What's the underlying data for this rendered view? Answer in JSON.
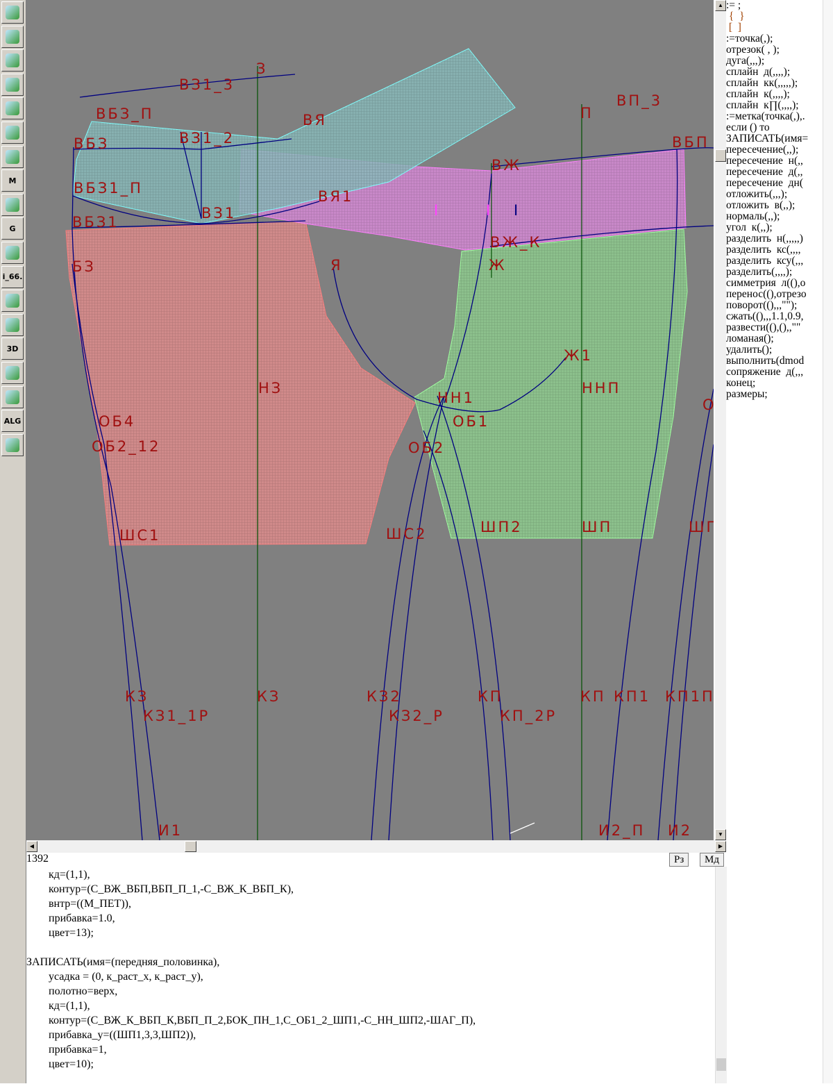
{
  "toolbar": {
    "items": [
      {
        "icon": "zoom-in-icon"
      },
      {
        "icon": "zoom-out-icon"
      },
      {
        "icon": "zoom-fit-icon"
      },
      {
        "icon": "grid-icon"
      },
      {
        "icon": "segment-icon"
      },
      {
        "icon": "map-icon"
      },
      {
        "icon": "pattern-piece-icon"
      },
      {
        "icon": "model-icon",
        "text": "M"
      },
      {
        "icon": "compass-icon"
      },
      {
        "icon": "grading-icon",
        "text": "G"
      },
      {
        "icon": "measurements-icon"
      },
      {
        "icon": "version-icon",
        "text": "i_66."
      },
      {
        "icon": "table-icon"
      },
      {
        "icon": "avatar-icon"
      },
      {
        "icon": "3d-icon",
        "text": "3D"
      },
      {
        "icon": "list-icon"
      },
      {
        "icon": "books-icon"
      },
      {
        "icon": "algorithm-icon",
        "text": "ALG"
      },
      {
        "icon": "exit-icon"
      }
    ]
  },
  "canvas": {
    "background": "#808080",
    "labels": [
      "ВЗ1_3",
      "З",
      "ВБЗ_П",
      "ВЯ",
      "ВБЗ",
      "ВЗ1_2",
      "ВБЗ1_П",
      "ВЯ1",
      "ВЗ1",
      "ВБЗ1",
      "БЗ",
      "Я",
      "П",
      "ВП_3",
      "ВБП",
      "ВЖ",
      "ВЖ_К",
      "Ж",
      "Ж1",
      "НН1",
      "НЗ",
      "ННП",
      "ОБ1",
      "ОБ2",
      "ОБ4",
      "ОБ2_12",
      "ШС1",
      "ШС2",
      "ШП2",
      "ШП",
      "ШП",
      "КЗ",
      "КЗ1_1Р",
      "КЗ",
      "КЗ2",
      "КЗ2_Р",
      "КП",
      "КП_2Р",
      "КП",
      "КП1",
      "КП1П",
      "И1",
      "И2_П",
      "И2",
      "О",
      "I",
      "I",
      "I"
    ],
    "colors": {
      "back_piece": "#e08080",
      "front_piece": "#90e090",
      "waistband_front": "#e080e0",
      "waistband_back": "#80e0e0",
      "lines": "#000080",
      "axis": "#006000",
      "labels": "#a01010"
    }
  },
  "palette": {
    "items": [
      ":= ;",
      " {  }",
      " [  ]",
      ":=точка(,);",
      "отрезок( , );",
      "дуга(,,,);",
      "сплайн  д(,,,,);",
      "сплайн  кк(,,,,,);",
      "сплайн  к(,,,,);",
      "сплайн  к∏(,,,,);",
      ":=метка(точка(,),.",
      "если () то",
      "ЗАПИСАТЬ(имя=",
      "пересечение(,,);",
      "пересечение  н(,,",
      "пересечение  д(,,",
      "пересечение  дн(",
      "отложить(,,,);",
      "отложить  в(,,);",
      "нормаль(,,);",
      "угол  к(,,);",
      "разделить  н(,,,,,)",
      "разделить  кс(,,,,",
      "разделить  ксу(,,,",
      "разделить(,,,,);",
      "симметрия  л((),о",
      "перенос((),отрезо",
      "поворот((),,,\"\");",
      "сжать((),,,1.1,0.9,",
      "развести((),(),,\"\"",
      "ломаная();",
      "удалить();",
      "выполнить(dmod",
      "сопряжение  д(,,,",
      "конец;",
      "размеры;"
    ]
  },
  "status": {
    "line": "1392",
    "btn_rz": "Рз",
    "btn_md": "Мд"
  },
  "code": {
    "lines": [
      "        кд=(1,1),",
      "        контур=(С_ВЖ_ВБП,ВБП_П_1,-С_ВЖ_К_ВБП_К),",
      "        внтр=((М_ПЕТ)),",
      "        прибавка=1.0,",
      "        цвет=13);",
      "",
      "ЗАПИСАТЬ(имя=(передняя_половинка),",
      "        усадка = (0, к_раст_х, к_раст_у),",
      "        полотно=верх,",
      "        кд=(1,1),",
      "        контур=(С_ВЖ_К_ВБП_К,ВБП_П_2,БОК_ПН_1,С_ОБ1_2_ШП1,-С_НН_ШП2,-ШАГ_П),",
      "        прибавка_у=((ШП1,3,3,ШП2)),",
      "        прибавка=1,",
      "        цвет=10);"
    ]
  }
}
